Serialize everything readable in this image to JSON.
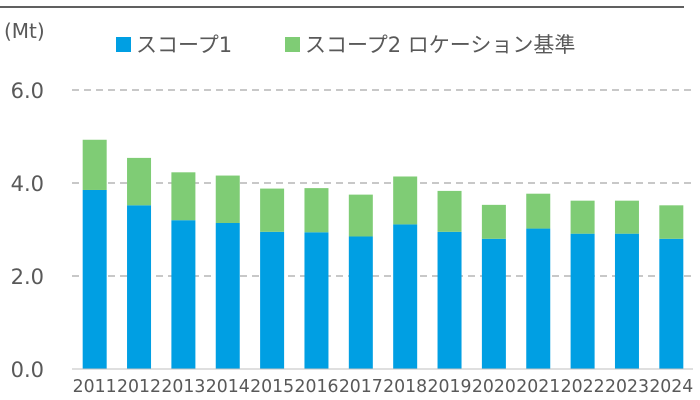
{
  "chart_data": {
    "type": "bar",
    "stacked": true,
    "unit_label": "(Mt)",
    "categories": [
      "2011",
      "2012",
      "2013",
      "2014",
      "2015",
      "2016",
      "2017",
      "2018",
      "2019",
      "2020",
      "2021",
      "2022",
      "2023",
      "2024"
    ],
    "series": [
      {
        "name": "スコープ1",
        "color": "#009fe3",
        "values": [
          3.85,
          3.52,
          3.2,
          3.14,
          2.95,
          2.94,
          2.85,
          3.11,
          2.95,
          2.8,
          3.02,
          2.91,
          2.91,
          2.8
        ]
      },
      {
        "name": "スコープ2 ロケーション基準",
        "color": "#7fcc75",
        "values": [
          1.08,
          1.02,
          1.03,
          1.02,
          0.93,
          0.95,
          0.9,
          1.03,
          0.88,
          0.73,
          0.75,
          0.71,
          0.71,
          0.72
        ]
      }
    ],
    "ylim": [
      0,
      6
    ],
    "yticks": [
      "0.0",
      "2.0",
      "4.0",
      "6.0"
    ],
    "ytick_values": [
      0,
      2,
      4,
      6
    ],
    "grid": true,
    "legend_position": "top"
  }
}
